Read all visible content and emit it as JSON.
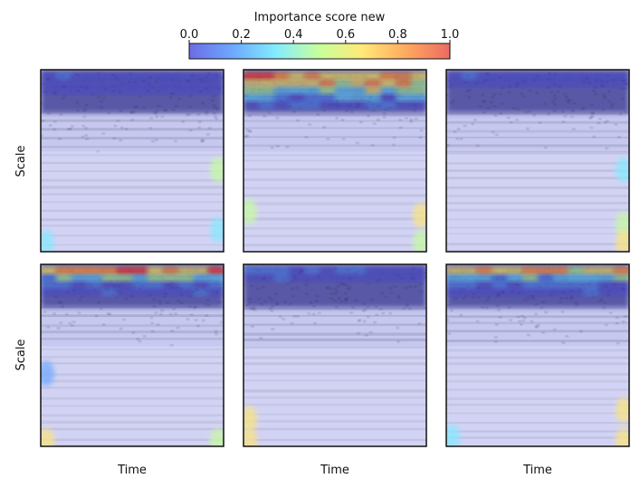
{
  "chart_data": {
    "type": "heatmap",
    "colorbar": {
      "title": "Importance score new",
      "ticks": [
        "0.0",
        "0.2",
        "0.4",
        "0.6",
        "0.8",
        "1.0"
      ],
      "range": [
        0.0,
        1.0
      ],
      "colormap": [
        "#3b3bdc",
        "#3c8cff",
        "#5ae6ff",
        "#b6ff7a",
        "#ffe14a",
        "#ff8c2a",
        "#e53a2c"
      ]
    },
    "ylabel": "Scale",
    "xlabel": "Time",
    "layout_grid": [
      2,
      3
    ],
    "panels": [
      {
        "row": 0,
        "col": 0,
        "hot_rows_top": [
          0.15,
          0.1,
          0.05
        ],
        "edge_hotspots": [
          [
            "right",
            0.55,
            0.45
          ],
          [
            "right",
            0.88,
            0.4
          ],
          [
            "left",
            0.95,
            0.3
          ]
        ]
      },
      {
        "row": 0,
        "col": 1,
        "hot_rows_top": [
          1.0,
          0.85,
          0.6,
          0.4,
          0.2
        ],
        "edge_hotspots": [
          [
            "left",
            0.78,
            0.45
          ],
          [
            "right",
            0.8,
            0.7
          ],
          [
            "right",
            0.95,
            0.5
          ]
        ]
      },
      {
        "row": 0,
        "col": 2,
        "hot_rows_top": [
          0.1,
          0.05
        ],
        "edge_hotspots": [
          [
            "right",
            0.55,
            0.35
          ],
          [
            "right",
            0.85,
            0.55
          ],
          [
            "right",
            0.95,
            0.7
          ]
        ]
      },
      {
        "row": 1,
        "col": 0,
        "hot_rows_top": [
          0.95,
          0.55,
          0.2,
          0.1
        ],
        "edge_hotspots": [
          [
            "left",
            0.97,
            0.6
          ],
          [
            "right",
            0.97,
            0.45
          ],
          [
            "left",
            0.6,
            0.2
          ]
        ]
      },
      {
        "row": 1,
        "col": 1,
        "hot_rows_top": [
          0.2,
          0.1
        ],
        "edge_hotspots": [
          [
            "left",
            0.85,
            0.6
          ],
          [
            "left",
            0.97,
            0.7
          ]
        ]
      },
      {
        "row": 1,
        "col": 2,
        "hot_rows_top": [
          0.9,
          0.45,
          0.2,
          0.1
        ],
        "edge_hotspots": [
          [
            "right",
            0.8,
            0.6
          ],
          [
            "right",
            0.97,
            0.7
          ],
          [
            "left",
            0.95,
            0.35
          ]
        ]
      }
    ]
  }
}
